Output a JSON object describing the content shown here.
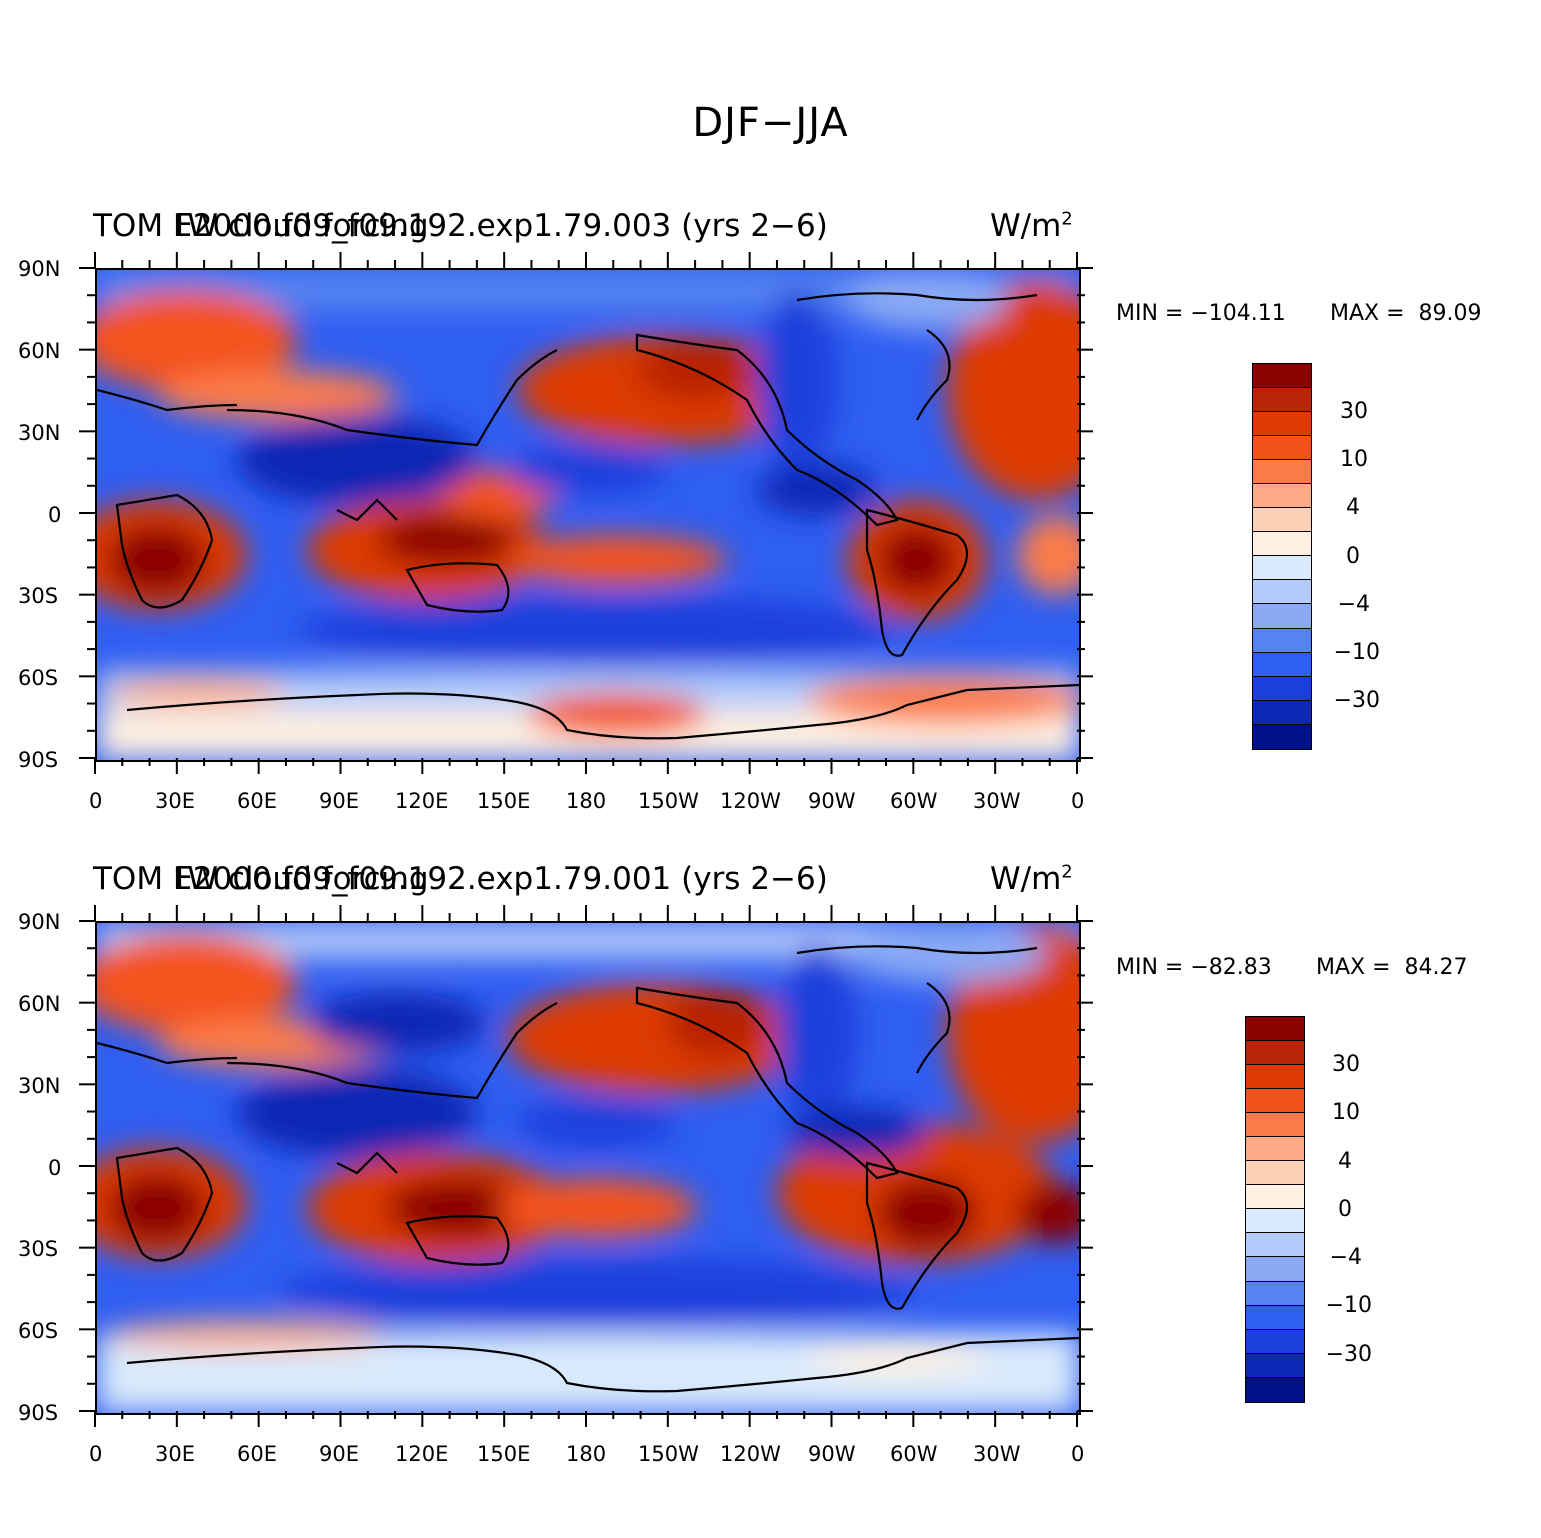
{
  "figure": {
    "title": "DJF−JJA"
  },
  "panels": [
    {
      "id": "top",
      "title_left": "TOM LW cloud forcing",
      "title_center": "F2000.f09_f09.192.exp1.79.003 (yrs 2−6)",
      "title_right_units": "W/m",
      "units_exponent": "2",
      "min_label": "MIN = −104.11",
      "max_label": "MAX =  89.09",
      "min": -104.11,
      "max": 89.09
    },
    {
      "id": "bottom",
      "title_left": "TOM LW cloud forcing",
      "title_center": "F2000.f09_f09.192.exp1.79.001 (yrs 2−6)",
      "title_right_units": "W/m",
      "units_exponent": "2",
      "min_label": "MIN = −82.83",
      "max_label": "MAX =  84.27",
      "min": -82.83,
      "max": 84.27
    }
  ],
  "axes": {
    "lat_labels": [
      "90N",
      "60N",
      "30N",
      "0",
      "30S",
      "60S",
      "90S"
    ],
    "lon_labels": [
      "0",
      "30E",
      "60E",
      "90E",
      "120E",
      "150E",
      "180",
      "150W",
      "120W",
      "90W",
      "60W",
      "30W",
      "0"
    ]
  },
  "colorbar": {
    "colors": [
      "#8b0000",
      "#b82405",
      "#dd3a06",
      "#f4521c",
      "#fb7c4a",
      "#fcab86",
      "#fdd0b8",
      "#fef0e1",
      "#d9eafc",
      "#b3cbfa",
      "#8aa9f5",
      "#5584f0",
      "#2f5ef2",
      "#1a3fdc",
      "#0d28b4",
      "#000f8a"
    ],
    "labels": [
      "30",
      "10",
      "4",
      "0",
      "−4",
      "−10",
      "−30"
    ]
  },
  "chart_data": [
    {
      "type": "heatmap",
      "title": "TOM LW cloud forcing F2000.f09_f09.192.exp1.79.003 (yrs 2−6)",
      "units": "W/m2",
      "x_range": [
        0,
        360
      ],
      "y_range": [
        -90,
        90
      ],
      "min": -104.11,
      "max": 89.09,
      "contour_levels": [
        -50,
        -40,
        -30,
        -20,
        -10,
        -6,
        -4,
        -2,
        0,
        2,
        4,
        6,
        10,
        20,
        30,
        40
      ]
    },
    {
      "type": "heatmap",
      "title": "TOM LW cloud forcing F2000.f09_f09.192.exp1.79.001 (yrs 2−6)",
      "units": "W/m2",
      "x_range": [
        0,
        360
      ],
      "y_range": [
        -90,
        90
      ],
      "min": -82.83,
      "max": 84.27,
      "contour_levels": [
        -50,
        -40,
        -30,
        -20,
        -10,
        -6,
        -4,
        -2,
        0,
        2,
        4,
        6,
        10,
        20,
        30,
        40
      ]
    }
  ]
}
